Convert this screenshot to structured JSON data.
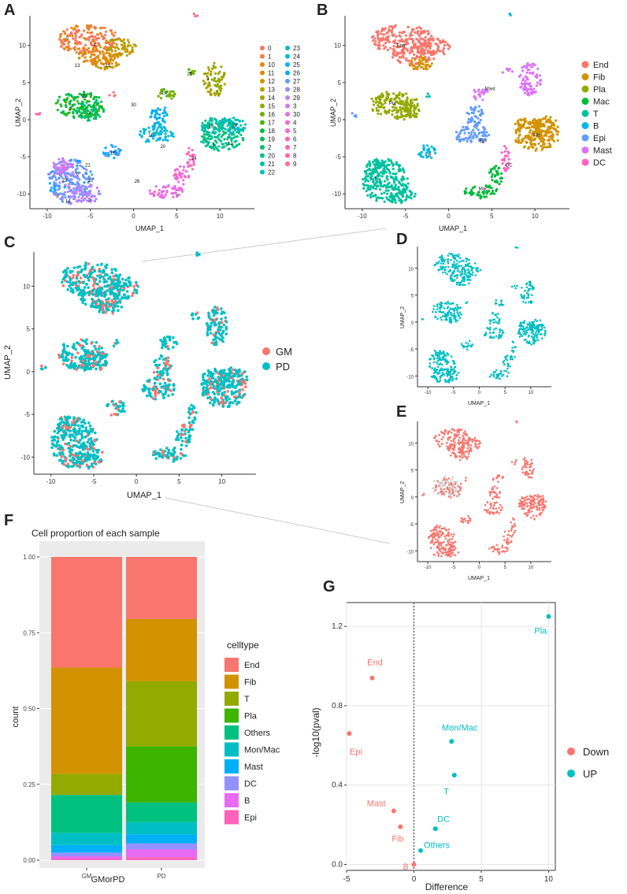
{
  "panel_labels": {
    "A": "A",
    "B": "B",
    "C": "C",
    "D": "D",
    "E": "E",
    "F": "F",
    "G": "G"
  },
  "chart_data": [
    {
      "id": "A",
      "type": "scatter",
      "subtype": "UMAP clusters",
      "xlabel": "UMAP_1",
      "ylabel": "UMAP_2",
      "xlim": [
        -12,
        14
      ],
      "ylim": [
        -12,
        14
      ],
      "xticks": [
        -10,
        -5,
        0,
        5,
        10
      ],
      "yticks": [
        -10,
        -5,
        0,
        5,
        10
      ],
      "legend_col1": [
        "0",
        "1",
        "10",
        "11",
        "12",
        "13",
        "14",
        "15",
        "16",
        "17",
        "18",
        "19",
        "2",
        "20",
        "21",
        "22"
      ],
      "legend_col2": [
        "23",
        "24",
        "25",
        "26",
        "27",
        "28",
        "29",
        "3",
        "30",
        "4",
        "5",
        "6",
        "7",
        "8",
        "9"
      ],
      "legend_colors_col1": [
        "#f8766d",
        "#f47d4c",
        "#e58700",
        "#d89000",
        "#c99800",
        "#b79f00",
        "#a3a500",
        "#8bab00",
        "#6bb100",
        "#3db700",
        "#00ba38",
        "#00bc59",
        "#00bf75",
        "#00c08b",
        "#00c1a3",
        "#00bfb8"
      ],
      "legend_colors_col2": [
        "#00bbcb",
        "#00b7db",
        "#00b0f6",
        "#00a9ff",
        "#619cff",
        "#8c92ff",
        "#b983ff",
        "#d078ff",
        "#e76bf3",
        "#f564e3",
        "#fd61d1",
        "#ff62bc",
        "#ff65ae",
        "#ff699c",
        "#ff6c90"
      ],
      "cluster_labels": [
        {
          "text": "0",
          "x": -7.7,
          "y": 11
        },
        {
          "text": "4",
          "x": -4.5,
          "y": 10.1
        },
        {
          "text": "13",
          "x": -6.5,
          "y": 7.3
        },
        {
          "text": "11",
          "x": -3,
          "y": 7.3
        },
        {
          "text": "22",
          "x": -5.7,
          "y": 3.2
        },
        {
          "text": "2",
          "x": -7.3,
          "y": 1.5
        },
        {
          "text": "7",
          "x": -5.1,
          "y": 0.9
        },
        {
          "text": "19",
          "x": 3.5,
          "y": 3.6
        },
        {
          "text": "3",
          "x": 8.6,
          "y": 5.5
        },
        {
          "text": "25",
          "x": 6.5,
          "y": 6.2
        },
        {
          "text": "30",
          "x": 0,
          "y": 2
        },
        {
          "text": "18",
          "x": 9,
          "y": -0.9
        },
        {
          "text": "17",
          "x": 11.7,
          "y": -0.8
        },
        {
          "text": "1",
          "x": 9.3,
          "y": -3.3
        },
        {
          "text": "12",
          "x": 11.2,
          "y": -3.2
        },
        {
          "text": "16",
          "x": 2,
          "y": -2.1
        },
        {
          "text": "20",
          "x": 3.4,
          "y": -3.6
        },
        {
          "text": "24",
          "x": 7,
          "y": -5.2
        },
        {
          "text": "15",
          "x": -2.4,
          "y": -4.5
        },
        {
          "text": "21",
          "x": -5.3,
          "y": -6.1
        },
        {
          "text": "6",
          "x": -6.5,
          "y": -7.3
        },
        {
          "text": "10",
          "x": -5,
          "y": -8.2
        },
        {
          "text": "23",
          "x": -8,
          "y": -8.2
        },
        {
          "text": "8",
          "x": -8.8,
          "y": -10.3
        },
        {
          "text": "14",
          "x": -7.6,
          "y": -11
        },
        {
          "text": "9",
          "x": -5.1,
          "y": -10.8
        },
        {
          "text": "26",
          "x": 0.4,
          "y": -8.3
        },
        {
          "text": "5",
          "x": 5,
          "y": -10.1
        }
      ]
    },
    {
      "id": "B",
      "type": "scatter",
      "subtype": "UMAP cell types",
      "xlabel": "UMAP_1",
      "ylabel": "UMAP_2",
      "xlim": [
        -12,
        14
      ],
      "ylim": [
        -12,
        14
      ],
      "xticks": [
        -10,
        -5,
        0,
        5,
        10
      ],
      "yticks": [
        -10,
        -5,
        0,
        5,
        10
      ],
      "legend": [
        "End",
        "Fib",
        "Pla",
        "Mac",
        "T",
        "B",
        "Epi",
        "Mast",
        "DC"
      ],
      "legend_colors": [
        "#f8766d",
        "#d39200",
        "#93aa00",
        "#00ba38",
        "#00c19f",
        "#00b9e3",
        "#619cff",
        "#db72fb",
        "#ff61c3"
      ],
      "cluster_labels": [
        {
          "text": "End",
          "x": -5.5,
          "y": 10
        },
        {
          "text": "Pla",
          "x": -6.5,
          "y": 2.2
        },
        {
          "text": "Mast",
          "x": 4.8,
          "y": 4.2
        },
        {
          "text": "Fib",
          "x": 10.2,
          "y": -2.1
        },
        {
          "text": "Epi",
          "x": 4,
          "y": -2.8
        },
        {
          "text": "B",
          "x": -2.2,
          "y": -4.8
        },
        {
          "text": "DC",
          "x": 7,
          "y": -6.1
        },
        {
          "text": "T",
          "x": -8.5,
          "y": -8
        },
        {
          "text": "Mac",
          "x": 4,
          "y": -9.3
        }
      ]
    },
    {
      "id": "C",
      "type": "scatter",
      "subtype": "UMAP by group",
      "xlabel": "UMAP_1",
      "ylabel": "UMAP_2",
      "xlim": [
        -12,
        14
      ],
      "ylim": [
        -12,
        14
      ],
      "xticks": [
        -10,
        -5,
        0,
        5,
        10
      ],
      "yticks": [
        -10,
        -5,
        0,
        5,
        10
      ],
      "legend": [
        "GM",
        "PD"
      ],
      "legend_colors": [
        "#f8766d",
        "#00bfc4"
      ]
    },
    {
      "id": "D",
      "type": "scatter",
      "subtype": "UMAP PD only",
      "xlabel": "UMAP_1",
      "ylabel": "UMAP_2",
      "xlim": [
        -12,
        14
      ],
      "ylim": [
        -12,
        14
      ],
      "xticks": [
        -10,
        -5,
        0,
        5,
        10
      ],
      "yticks": [
        -10,
        -5,
        0,
        5,
        10
      ],
      "color": "#00bfc4"
    },
    {
      "id": "E",
      "type": "scatter",
      "subtype": "UMAP GM only",
      "xlabel": "UMAP_1",
      "ylabel": "UMAP_2",
      "xlim": [
        -12,
        14
      ],
      "ylim": [
        -12,
        14
      ],
      "xticks": [
        -10,
        -5,
        0,
        5,
        10
      ],
      "yticks": [
        -10,
        -5,
        0,
        5,
        10
      ],
      "color": "#f8766d"
    },
    {
      "id": "F",
      "type": "bar",
      "stacked": true,
      "title": "Cell proportion of each sample",
      "xlabel": "GMorPD",
      "ylabel": "count",
      "categories": [
        "GM",
        "PD"
      ],
      "ylim": [
        0,
        1
      ],
      "yticks": [
        "0.00",
        "0.25",
        "0.50",
        "0.75",
        "1.00"
      ],
      "legend_title": "celltype",
      "series": [
        {
          "name": "End",
          "color": "#f8766d",
          "values": [
            0.365,
            0.205
          ]
        },
        {
          "name": "Fib",
          "color": "#d39200",
          "values": [
            0.35,
            0.205
          ]
        },
        {
          "name": "T",
          "color": "#93aa00",
          "values": [
            0.07,
            0.215
          ]
        },
        {
          "name": "Pla",
          "color": "#3cb400",
          "values": [
            0.0,
            0.185
          ]
        },
        {
          "name": "Others",
          "color": "#00c17f",
          "values": [
            0.125,
            0.065
          ]
        },
        {
          "name": "Mon/Mac",
          "color": "#00bfc4",
          "values": [
            0.04,
            0.04
          ]
        },
        {
          "name": "Mast",
          "color": "#00b0f6",
          "values": [
            0.025,
            0.03
          ]
        },
        {
          "name": "DC",
          "color": "#9590ff",
          "values": [
            0.012,
            0.02
          ]
        },
        {
          "name": "B",
          "color": "#e76bf3",
          "values": [
            0.008,
            0.025
          ]
        },
        {
          "name": "Epi",
          "color": "#ff62bc",
          "values": [
            0.005,
            0.01
          ]
        }
      ]
    },
    {
      "id": "G",
      "type": "scatter",
      "subtype": "volcano",
      "xlabel": "Difference",
      "ylabel": "-log10(pval)",
      "xlim": [
        -5,
        10.5
      ],
      "ylim": [
        -0.03,
        1.32
      ],
      "xticks": [
        "-5",
        "0",
        "5",
        "10"
      ],
      "yticks": [
        "0.0",
        "0.4",
        "0.8",
        "1.2"
      ],
      "legend": [
        "Down",
        "UP"
      ],
      "legend_colors": [
        "#f8766d",
        "#00bfc4"
      ],
      "points": [
        {
          "label": "End",
          "x": -3.1,
          "y": 0.94,
          "group": "Down"
        },
        {
          "label": "Epi",
          "x": -4.8,
          "y": 0.66,
          "group": "Down"
        },
        {
          "label": "Mast",
          "x": -1.5,
          "y": 0.27,
          "group": "Down"
        },
        {
          "label": "Fib",
          "x": -1.0,
          "y": 0.19,
          "group": "Down"
        },
        {
          "label": "B",
          "x": 0.0,
          "y": 0.0,
          "group": "Down"
        },
        {
          "label": "Pla",
          "x": 10.0,
          "y": 1.25,
          "group": "UP"
        },
        {
          "label": "Mon/Mac",
          "x": 2.8,
          "y": 0.62,
          "group": "UP"
        },
        {
          "label": "T",
          "x": 3.0,
          "y": 0.45,
          "group": "UP"
        },
        {
          "label": "DC",
          "x": 1.6,
          "y": 0.18,
          "group": "UP"
        },
        {
          "label": "Others",
          "x": 0.5,
          "y": 0.07,
          "group": "UP"
        }
      ]
    }
  ]
}
